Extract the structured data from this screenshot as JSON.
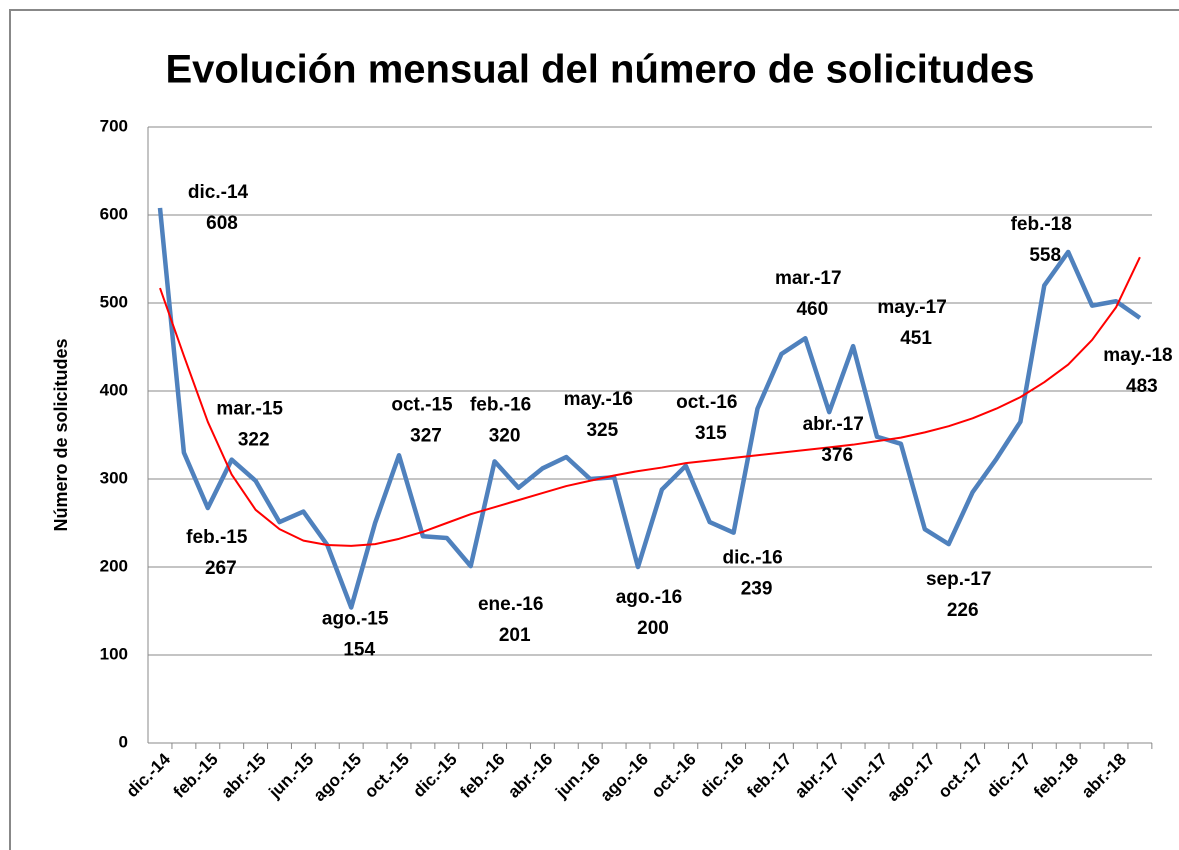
{
  "chart_data": {
    "type": "line",
    "title": "Evolución mensual del número de solicitudes",
    "y_label": "Número de solicitudes",
    "categories": [
      "dic.-14",
      null,
      "feb.-15",
      null,
      "abr.-15",
      null,
      "jun.-15",
      null,
      "ago.-15",
      null,
      "oct.-15",
      null,
      "dic.-15",
      null,
      "feb.-16",
      null,
      "abr.-16",
      null,
      "jun.-16",
      null,
      "ago.-16",
      null,
      "oct.-16",
      null,
      "dic.-16",
      null,
      "feb.-17",
      null,
      "abr.-17",
      null,
      "jun.-17",
      null,
      "ago.-17",
      null,
      "oct.-17",
      null,
      "dic.-17",
      null,
      "feb.-18",
      null,
      "abr.-18",
      null
    ],
    "series": [
      {
        "color": "#4f81bd",
        "values": [
          608,
          330,
          267,
          322,
          298,
          251,
          263,
          225,
          154,
          250,
          327,
          235,
          233,
          201,
          320,
          290,
          312,
          325,
          300,
          302,
          200,
          288,
          315,
          251,
          239,
          380,
          442,
          460,
          376,
          451,
          348,
          340,
          243,
          226,
          285,
          323,
          365,
          520,
          558,
          497,
          502,
          483
        ]
      },
      {
        "color": "#ff0000",
        "values": [
          517,
          440,
          365,
          305,
          265,
          243,
          230,
          225,
          224,
          226,
          232,
          240,
          250,
          260,
          268,
          276,
          284,
          292,
          298,
          304,
          309,
          313,
          318,
          321,
          324,
          327,
          330,
          333,
          336,
          339,
          343,
          347,
          353,
          360,
          369,
          380,
          393,
          410,
          430,
          458,
          495,
          552
        ]
      }
    ],
    "annotations": [
      "dic.-14",
      null,
      "feb.-15",
      "mar.-15",
      null,
      null,
      null,
      null,
      "ago.-15",
      null,
      "oct.-15",
      null,
      null,
      "ene.-16",
      "feb.-16",
      null,
      null,
      "may.-16",
      null,
      null,
      "ago.-16",
      null,
      "oct.-16",
      null,
      "dic.-16",
      null,
      null,
      "mar.-17",
      "abr.-17",
      "may.-17",
      null,
      null,
      null,
      "sep.-17",
      null,
      null,
      null,
      null,
      "feb.-18",
      null,
      null,
      "may.-18"
    ],
    "ylim": [
      0,
      700
    ],
    "yticks": [
      0,
      100,
      200,
      300,
      400,
      500,
      600,
      700
    ],
    "grid": true
  }
}
